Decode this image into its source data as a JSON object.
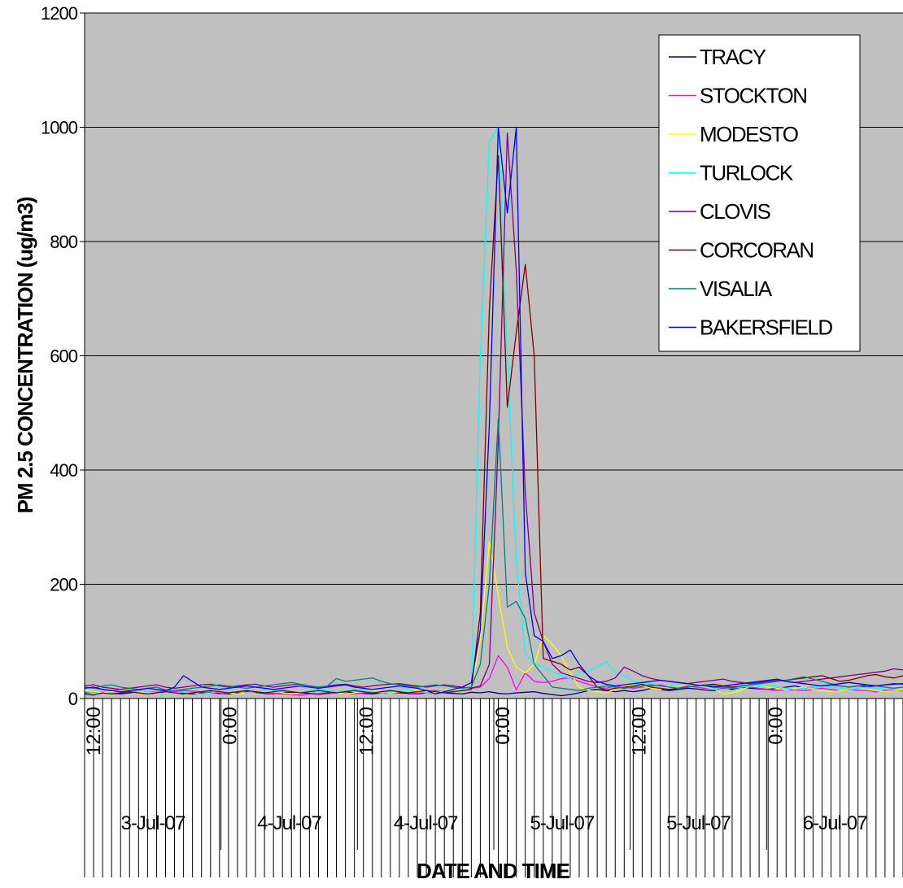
{
  "chart_data": {
    "type": "line",
    "xlabel": "DATE AND TIME",
    "ylabel": "PM 2.5 CONCENTRATION (ug/m3)",
    "ylim": [
      0,
      1200
    ],
    "yticks": [
      0,
      200,
      400,
      600,
      800,
      1000,
      1200
    ],
    "grid": "horizontal",
    "legend_position": "top-right",
    "plot_background": "#c0c0c0",
    "time_tick_labels": [
      "12:00",
      "0:00",
      "12:00",
      "0:00",
      "12:00",
      "0:00"
    ],
    "date_labels": [
      "3-Jul-07",
      "4-Jul-07",
      "4-Jul-07",
      "5-Jul-07",
      "5-Jul-07",
      "6-Jul-07"
    ],
    "series": [
      {
        "name": "TRACY",
        "color": "#000080",
        "values": [
          10,
          11,
          10,
          9,
          8,
          10,
          12,
          9,
          8,
          11,
          10,
          9,
          8,
          10,
          11,
          9,
          8,
          10,
          12,
          11,
          9,
          8,
          10,
          11,
          10,
          9,
          8,
          10,
          11,
          12,
          10,
          9,
          8,
          10,
          11,
          10,
          9,
          8,
          10,
          11,
          10,
          9,
          8,
          11,
          10,
          12,
          9,
          8,
          10,
          11,
          12,
          9,
          7,
          5,
          7,
          10,
          14,
          16,
          14,
          12,
          14,
          12,
          14,
          18,
          16,
          14,
          16,
          18,
          17,
          15,
          14,
          18,
          16,
          20,
          18,
          17,
          16,
          18,
          20,
          22,
          18,
          20,
          22,
          24,
          22,
          20,
          22,
          21,
          22,
          24,
          25,
          26
        ]
      },
      {
        "name": "STOCKTON",
        "color": "#ff00ff",
        "values": [
          20,
          18,
          16,
          14,
          15,
          12,
          10,
          12,
          11,
          13,
          12,
          14,
          13,
          12,
          10,
          8,
          10,
          12,
          11,
          12,
          10,
          9,
          8,
          7,
          6,
          8,
          7,
          8,
          10,
          9,
          8,
          10,
          11,
          12,
          13,
          12,
          10,
          9,
          12,
          14,
          13,
          12,
          15,
          18,
          20,
          35,
          75,
          55,
          15,
          45,
          30,
          28,
          30,
          35,
          36,
          30,
          25,
          20,
          18,
          22,
          20,
          18,
          20,
          22,
          24,
          20,
          18,
          22,
          20,
          18,
          20,
          18,
          20,
          22,
          20,
          18,
          16,
          14,
          16,
          15,
          14,
          16,
          18,
          16,
          14,
          16,
          15,
          14,
          12,
          14,
          15,
          13
        ]
      },
      {
        "name": "MODESTO",
        "color": "#ffff00",
        "values": [
          15,
          12,
          10,
          12,
          14,
          15,
          12,
          10,
          8,
          10,
          9,
          8,
          10,
          12,
          14,
          12,
          10,
          8,
          10,
          12,
          14,
          12,
          10,
          8,
          10,
          12,
          14,
          12,
          10,
          8,
          10,
          12,
          14,
          12,
          10,
          12,
          14,
          15,
          12,
          10,
          14,
          16,
          15,
          20,
          100,
          275,
          180,
          90,
          55,
          45,
          60,
          110,
          95,
          75,
          45,
          20,
          14,
          12,
          10,
          16,
          22,
          24,
          22,
          18,
          16,
          20,
          22,
          25,
          26,
          20,
          18,
          8,
          10,
          14,
          22,
          24,
          20,
          18,
          16,
          18,
          20,
          16,
          14,
          12,
          14,
          16,
          18,
          16,
          14,
          12,
          14,
          15
        ]
      },
      {
        "name": "TURLOCK",
        "color": "#00ffff",
        "values": [
          12,
          10,
          8,
          10,
          12,
          14,
          15,
          12,
          10,
          8,
          10,
          12,
          10,
          8,
          10,
          12,
          14,
          12,
          10,
          12,
          14,
          15,
          13,
          12,
          10,
          14,
          16,
          15,
          12,
          14,
          16,
          15,
          12,
          10,
          12,
          14,
          15,
          12,
          10,
          12,
          14,
          12,
          15,
          18,
          600,
          975,
          1000,
          600,
          240,
          80,
          60,
          55,
          48,
          40,
          35,
          45,
          48,
          55,
          65,
          45,
          40,
          30,
          28,
          25,
          22,
          20,
          24,
          26,
          24,
          22,
          18,
          16,
          18,
          20,
          22,
          24,
          22,
          20,
          18,
          16,
          18,
          20,
          22,
          20,
          18,
          16,
          18,
          20,
          18,
          16,
          18,
          20
        ]
      },
      {
        "name": "CLOVIS",
        "color": "#800080",
        "values": [
          22,
          24,
          20,
          18,
          16,
          18,
          20,
          22,
          24,
          20,
          18,
          20,
          22,
          24,
          25,
          22,
          20,
          22,
          24,
          25,
          22,
          20,
          22,
          24,
          25,
          22,
          20,
          22,
          24,
          25,
          22,
          20,
          22,
          24,
          25,
          26,
          24,
          22,
          20,
          22,
          24,
          22,
          20,
          18,
          22,
          60,
          450,
          990,
          750,
          360,
          150,
          100,
          60,
          45,
          40,
          35,
          30,
          28,
          30,
          36,
          55,
          48,
          40,
          35,
          32,
          30,
          28,
          26,
          28,
          30,
          32,
          34,
          30,
          28,
          26,
          28,
          30,
          32,
          30,
          28,
          30,
          32,
          34,
          36,
          38,
          40,
          42,
          44,
          46,
          48,
          52,
          50
        ]
      },
      {
        "name": "CORCORAN",
        "color": "#800000",
        "values": [
          8,
          6,
          10,
          8,
          10,
          12,
          10,
          8,
          10,
          12,
          10,
          8,
          10,
          12,
          14,
          12,
          10,
          12,
          14,
          12,
          10,
          12,
          14,
          12,
          10,
          12,
          14,
          12,
          10,
          12,
          14,
          12,
          10,
          12,
          14,
          12,
          10,
          12,
          14,
          12,
          10,
          12,
          14,
          16,
          150,
          680,
          950,
          510,
          640,
          760,
          600,
          70,
          65,
          60,
          50,
          55,
          40,
          20,
          15,
          18,
          20,
          22,
          25,
          20,
          18,
          16,
          18,
          20,
          22,
          24,
          25,
          22,
          20,
          22,
          24,
          26,
          28,
          30,
          32,
          34,
          36,
          38,
          40,
          35,
          30,
          32,
          36,
          40,
          42,
          38,
          36,
          40
        ]
      },
      {
        "name": "VISALIA",
        "color": "#008080",
        "values": [
          20,
          18,
          22,
          24,
          20,
          18,
          16,
          18,
          20,
          15,
          14,
          16,
          18,
          20,
          22,
          24,
          22,
          20,
          18,
          20,
          22,
          24,
          26,
          28,
          25,
          22,
          20,
          22,
          35,
          30,
          32,
          34,
          36,
          30,
          26,
          24,
          22,
          20,
          22,
          24,
          22,
          20,
          18,
          20,
          60,
          200,
          490,
          160,
          170,
          140,
          60,
          40,
          20,
          18,
          16,
          14,
          18,
          20,
          22,
          20,
          18,
          20,
          22,
          24,
          22,
          20,
          18,
          20,
          22,
          24,
          22,
          20,
          18,
          22,
          24,
          26,
          28,
          30,
          32,
          35,
          38,
          34,
          30,
          26,
          22,
          20,
          22,
          24,
          22,
          20,
          18,
          20
        ]
      },
      {
        "name": "BAKERSFIELD",
        "color": "#0000ff",
        "values": [
          18,
          20,
          16,
          14,
          12,
          14,
          15,
          18,
          16,
          14,
          20,
          40,
          30,
          20,
          18,
          16,
          18,
          20,
          22,
          20,
          18,
          16,
          18,
          20,
          22,
          20,
          18,
          20,
          22,
          24,
          20,
          18,
          16,
          18,
          20,
          22,
          20,
          18,
          14,
          8,
          12,
          16,
          20,
          28,
          120,
          480,
          1000,
          850,
          1000,
          220,
          110,
          100,
          70,
          75,
          85,
          60,
          40,
          30,
          25,
          22,
          24,
          26,
          28,
          30,
          32,
          30,
          28,
          26,
          24,
          22,
          20,
          22,
          24,
          26,
          28,
          30,
          32,
          34,
          30,
          28,
          26,
          24,
          22,
          24,
          26,
          28,
          26,
          24,
          22,
          24,
          26,
          25
        ]
      }
    ]
  }
}
